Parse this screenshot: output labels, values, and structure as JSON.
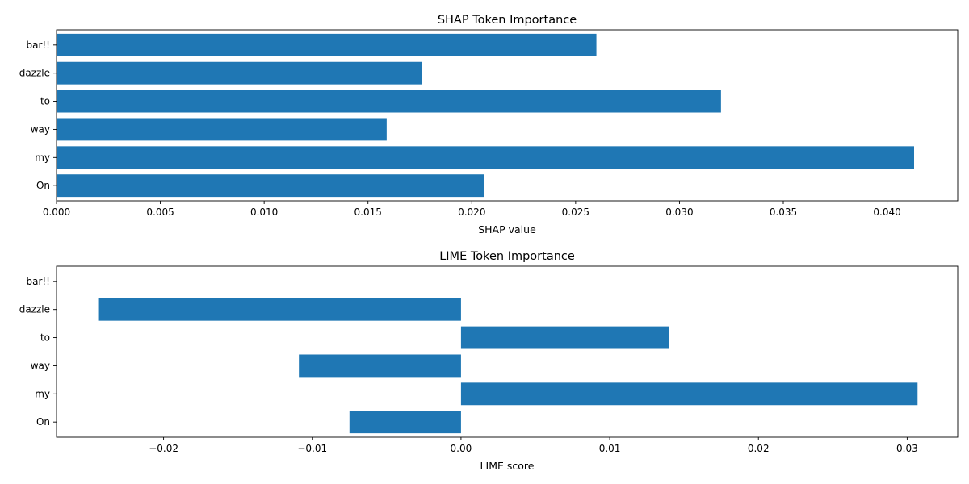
{
  "chart_data": [
    {
      "type": "bar",
      "orientation": "horizontal",
      "title": "SHAP Token Importance",
      "xlabel": "SHAP value",
      "ylabel": "",
      "categories": [
        "On",
        "my",
        "way",
        "to",
        "dazzle",
        "bar!!"
      ],
      "values": [
        0.0206,
        0.0413,
        0.0159,
        0.032,
        0.0176,
        0.026
      ],
      "xlim": [
        0.0,
        0.0434
      ],
      "xticks": [
        0.0,
        0.005,
        0.01,
        0.015,
        0.02,
        0.025,
        0.03,
        0.035,
        0.04
      ],
      "xtick_labels": [
        "0.000",
        "0.005",
        "0.010",
        "0.015",
        "0.020",
        "0.025",
        "0.030",
        "0.035",
        "0.040"
      ],
      "grid": false,
      "bar_color": "#1f77b4"
    },
    {
      "type": "bar",
      "orientation": "horizontal",
      "title": "LIME Token Importance",
      "xlabel": "LIME score",
      "ylabel": "",
      "categories": [
        "On",
        "my",
        "way",
        "to",
        "dazzle",
        "bar!!"
      ],
      "values": [
        -0.0075,
        0.0307,
        -0.0109,
        0.014,
        -0.0244,
        0.0
      ],
      "xlim": [
        -0.0272,
        0.0334
      ],
      "xticks": [
        -0.02,
        -0.01,
        0.0,
        0.01,
        0.02,
        0.03
      ],
      "xtick_labels": [
        "−0.02",
        "−0.01",
        "0.00",
        "0.01",
        "0.02",
        "0.03"
      ],
      "grid": false,
      "bar_color": "#1f77b4"
    }
  ]
}
